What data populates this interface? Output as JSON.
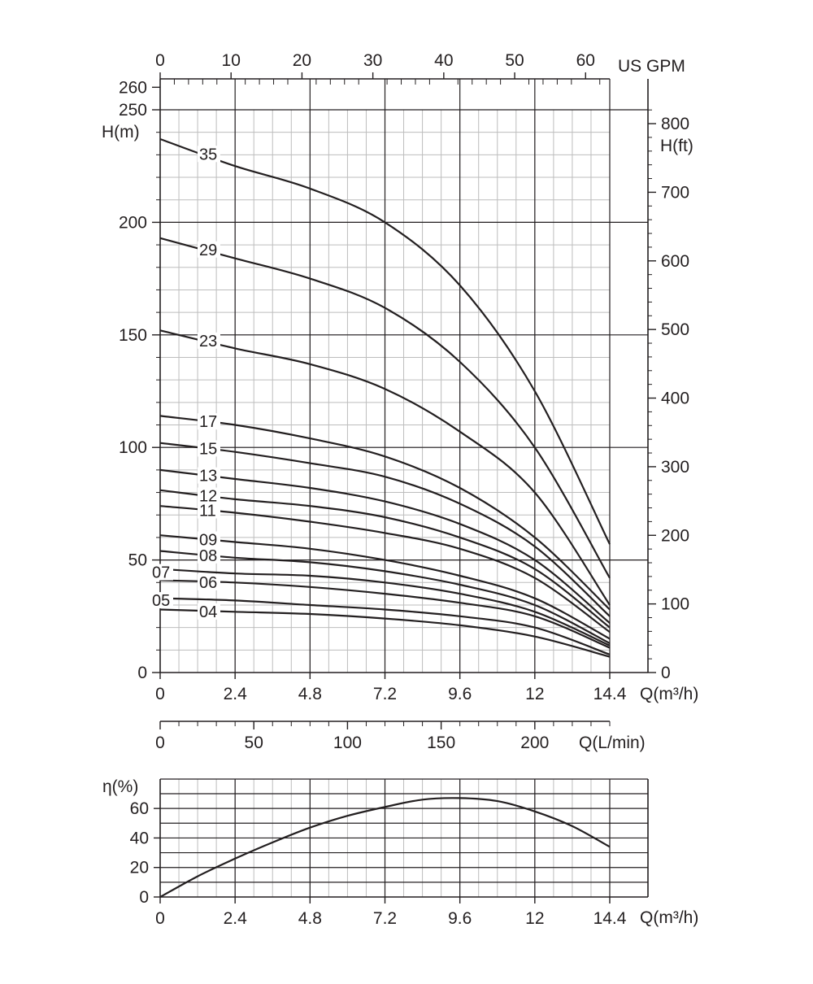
{
  "chart_data": {
    "type": "line",
    "head_chart": {
      "xlabel": "Q(m³/h)",
      "ylabel_left": "H(m)",
      "ylabel_right": "H(ft)",
      "xlabel_top": "US GPM",
      "xlabel_lmin": "Q(L/min)",
      "xlim": [
        0,
        14.4
      ],
      "ylim": [
        0,
        250
      ],
      "x_ticks": [
        "0",
        "2.4",
        "4.8",
        "7.2",
        "9.6",
        "12",
        "14.4"
      ],
      "x_tick_values": [
        0,
        2.4,
        4.8,
        7.2,
        9.6,
        12,
        14.4
      ],
      "y_ticks_left": [
        "0",
        "50",
        "100",
        "150",
        "200",
        "250",
        "260"
      ],
      "y_tick_values_left": [
        0,
        50,
        100,
        150,
        200,
        250,
        260
      ],
      "y_ticks_right": [
        "0",
        "100",
        "200",
        "300",
        "400",
        "500",
        "600",
        "700",
        "800"
      ],
      "y_tick_values_right_ft": [
        0,
        100,
        200,
        300,
        400,
        500,
        600,
        700,
        800
      ],
      "gpm_ticks": [
        "0",
        "10",
        "20",
        "30",
        "40",
        "50",
        "60"
      ],
      "gpm_tick_values": [
        0,
        10,
        20,
        30,
        40,
        50,
        60
      ],
      "lmin_ticks": [
        "0",
        "50",
        "100",
        "150",
        "200"
      ],
      "lmin_tick_values": [
        0,
        50,
        100,
        150,
        200
      ],
      "x": [
        0,
        2.4,
        4.8,
        7.2,
        9.6,
        12,
        14.4
      ],
      "series": [
        {
          "name": "35",
          "label": "35",
          "values": [
            237,
            225,
            215,
            200,
            172,
            125,
            57
          ]
        },
        {
          "name": "29",
          "label": "29",
          "values": [
            193,
            184,
            175,
            162,
            138,
            100,
            42
          ]
        },
        {
          "name": "23",
          "label": "23",
          "values": [
            152,
            144,
            137,
            126,
            107,
            80,
            30
          ]
        },
        {
          "name": "17",
          "label": "17",
          "values": [
            114,
            110,
            104,
            96,
            82,
            60,
            28
          ]
        },
        {
          "name": "15",
          "label": "15",
          "values": [
            102,
            98,
            93,
            87,
            75,
            56,
            25
          ]
        },
        {
          "name": "13",
          "label": "13",
          "values": [
            90,
            86,
            82,
            76,
            66,
            50,
            22
          ]
        },
        {
          "name": "12",
          "label": "12",
          "values": [
            81,
            77,
            74,
            69,
            60,
            46,
            20
          ]
        },
        {
          "name": "11",
          "label": "11",
          "values": [
            74,
            71,
            67,
            62,
            55,
            42,
            18
          ]
        },
        {
          "name": "09",
          "label": "09",
          "values": [
            61,
            58,
            55,
            50,
            43,
            33,
            15
          ]
        },
        {
          "name": "08",
          "label": "08",
          "values": [
            54,
            51,
            49,
            45,
            39,
            30,
            13
          ]
        },
        {
          "name": "07",
          "label": "07",
          "values": [
            46,
            44,
            43,
            40,
            35,
            27,
            12
          ]
        },
        {
          "name": "06",
          "label": "06",
          "values": [
            41,
            40,
            38,
            35,
            31,
            25,
            11
          ]
        },
        {
          "name": "05",
          "label": "05",
          "values": [
            33,
            32,
            30,
            28,
            25,
            20,
            8
          ]
        },
        {
          "name": "04",
          "label": "04",
          "values": [
            28,
            27,
            26,
            24,
            21,
            16,
            7
          ]
        }
      ]
    },
    "efficiency_chart": {
      "xlabel": "Q(m³/h)",
      "ylabel": "η(%)",
      "xlim": [
        0,
        14.4
      ],
      "ylim": [
        0,
        80
      ],
      "x_ticks": [
        "0",
        "2.4",
        "4.8",
        "7.2",
        "9.6",
        "12",
        "14.4"
      ],
      "x_tick_values": [
        0,
        2.4,
        4.8,
        7.2,
        9.6,
        12,
        14.4
      ],
      "y_ticks": [
        "0",
        "20",
        "40",
        "60"
      ],
      "y_tick_values": [
        0,
        20,
        40,
        60
      ],
      "x": [
        0,
        1.2,
        2.4,
        3.6,
        4.8,
        6,
        7.2,
        8.4,
        9.6,
        10.8,
        12,
        13.2,
        14.4
      ],
      "values": [
        0,
        14,
        26,
        37,
        47,
        55,
        61,
        66,
        67,
        65,
        58,
        48,
        34
      ]
    }
  }
}
